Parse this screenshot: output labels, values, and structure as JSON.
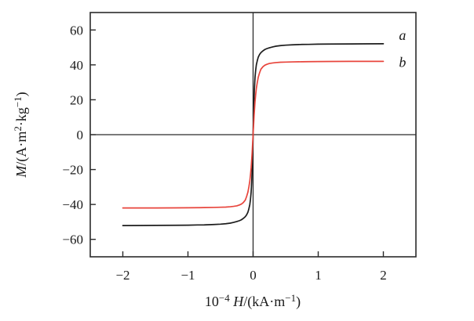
{
  "chart_data": {
    "type": "line",
    "title": "",
    "xlabel_plain": "10⁻⁴H/(kA·m⁻¹)",
    "ylabel_plain": "M/(A·m²·kg⁻¹)",
    "xlabel_parts": [
      {
        "t": "10"
      },
      {
        "t": "−4",
        "sup": true
      },
      {
        "t": " H",
        "i": true
      },
      {
        "t": "/(kA·m"
      },
      {
        "t": "−1",
        "sup": true
      },
      {
        "t": ")"
      }
    ],
    "ylabel_parts": [
      {
        "t": "M",
        "i": true
      },
      {
        "t": "/(A·m"
      },
      {
        "t": "2",
        "sup": true
      },
      {
        "t": "·kg"
      },
      {
        "t": "−1",
        "sup": true
      },
      {
        "t": ")"
      }
    ],
    "xlim": [
      -2.5,
      2.5
    ],
    "ylim": [
      -70,
      70
    ],
    "x_ticks": [
      {
        "value": -2,
        "label": "−2"
      },
      {
        "value": -1,
        "label": "−1"
      },
      {
        "value": 0,
        "label": "0"
      },
      {
        "value": 1,
        "label": "1"
      },
      {
        "value": 2,
        "label": "2"
      }
    ],
    "y_ticks": [
      {
        "value": -60,
        "label": "−60"
      },
      {
        "value": -40,
        "label": "−40"
      },
      {
        "value": -20,
        "label": "−20"
      },
      {
        "value": 0,
        "label": "0"
      },
      {
        "value": 20,
        "label": "20"
      },
      {
        "value": 40,
        "label": "40"
      },
      {
        "value": 60,
        "label": "60"
      }
    ],
    "grid": false,
    "zero_axes": true,
    "legend_position": "end-of-line-right",
    "colors": {
      "frame": "#2b2b2b",
      "axis": "#2b2b2b",
      "text": "#1a1a1a"
    },
    "series": [
      {
        "name": "a",
        "color": "#1c1c1c",
        "saturation_magnetization": 52,
        "label_pos": {
          "x": 2.24,
          "y": 57
        },
        "points": [
          [
            -2,
            -52.1
          ],
          [
            -1.7,
            -52.05
          ],
          [
            -1.5,
            -52
          ],
          [
            -1.2,
            -51.95
          ],
          [
            -1,
            -51.9
          ],
          [
            -0.85,
            -51.75
          ],
          [
            -0.75,
            -51.7
          ],
          [
            -0.6,
            -51.5
          ],
          [
            -0.5,
            -51.3
          ],
          [
            -0.42,
            -51.05
          ],
          [
            -0.35,
            -50.7
          ],
          [
            -0.3,
            -50.3
          ],
          [
            -0.25,
            -49.8
          ],
          [
            -0.21,
            -49.3
          ],
          [
            -0.18,
            -48.8
          ],
          [
            -0.15,
            -48
          ],
          [
            -0.12,
            -47
          ],
          [
            -0.1,
            -46
          ],
          [
            -0.08,
            -44.5
          ],
          [
            -0.065,
            -42.5
          ],
          [
            -0.05,
            -40
          ],
          [
            -0.04,
            -37
          ],
          [
            -0.03,
            -33
          ],
          [
            -0.02,
            -26
          ],
          [
            -0.015,
            -21
          ],
          [
            -0.01,
            -15
          ],
          [
            -0.005,
            -8
          ],
          [
            0,
            0
          ],
          [
            0.005,
            8
          ],
          [
            0.01,
            15
          ],
          [
            0.015,
            21
          ],
          [
            0.02,
            26
          ],
          [
            0.03,
            33
          ],
          [
            0.04,
            37
          ],
          [
            0.05,
            40
          ],
          [
            0.065,
            42.5
          ],
          [
            0.08,
            44.5
          ],
          [
            0.1,
            46
          ],
          [
            0.12,
            47
          ],
          [
            0.15,
            48
          ],
          [
            0.18,
            48.8
          ],
          [
            0.21,
            49.3
          ],
          [
            0.25,
            49.8
          ],
          [
            0.3,
            50.3
          ],
          [
            0.35,
            50.7
          ],
          [
            0.42,
            51.05
          ],
          [
            0.5,
            51.3
          ],
          [
            0.6,
            51.5
          ],
          [
            0.75,
            51.7
          ],
          [
            0.85,
            51.75
          ],
          [
            1,
            51.9
          ],
          [
            1.2,
            51.95
          ],
          [
            1.5,
            52
          ],
          [
            1.7,
            52.05
          ],
          [
            2,
            52.1
          ]
        ]
      },
      {
        "name": "b",
        "color": "#e8453c",
        "saturation_magnetization": 42,
        "label_pos": {
          "x": 2.24,
          "y": 41.5
        },
        "points": [
          [
            -2,
            -42
          ],
          [
            -1.7,
            -42
          ],
          [
            -1.5,
            -42
          ],
          [
            -1.2,
            -41.95
          ],
          [
            -1,
            -41.9
          ],
          [
            -0.85,
            -41.85
          ],
          [
            -0.75,
            -41.8
          ],
          [
            -0.6,
            -41.7
          ],
          [
            -0.5,
            -41.6
          ],
          [
            -0.42,
            -41.5
          ],
          [
            -0.35,
            -41.3
          ],
          [
            -0.3,
            -41.1
          ],
          [
            -0.25,
            -40.8
          ],
          [
            -0.21,
            -40.3
          ],
          [
            -0.18,
            -39.8
          ],
          [
            -0.15,
            -38.9
          ],
          [
            -0.12,
            -37.5
          ],
          [
            -0.1,
            -35.5
          ],
          [
            -0.08,
            -33
          ],
          [
            -0.065,
            -30
          ],
          [
            -0.05,
            -26.5
          ],
          [
            -0.04,
            -23
          ],
          [
            -0.03,
            -19
          ],
          [
            -0.02,
            -13.5
          ],
          [
            -0.015,
            -10.5
          ],
          [
            -0.01,
            -7
          ],
          [
            -0.005,
            -3.5
          ],
          [
            0,
            0
          ],
          [
            0.005,
            3.5
          ],
          [
            0.01,
            7
          ],
          [
            0.015,
            10.5
          ],
          [
            0.02,
            13.5
          ],
          [
            0.03,
            19
          ],
          [
            0.04,
            23
          ],
          [
            0.05,
            26.5
          ],
          [
            0.065,
            30
          ],
          [
            0.08,
            33
          ],
          [
            0.1,
            35.5
          ],
          [
            0.12,
            37.5
          ],
          [
            0.15,
            38.9
          ],
          [
            0.18,
            39.8
          ],
          [
            0.21,
            40.3
          ],
          [
            0.25,
            40.8
          ],
          [
            0.3,
            41.1
          ],
          [
            0.35,
            41.3
          ],
          [
            0.42,
            41.5
          ],
          [
            0.5,
            41.6
          ],
          [
            0.6,
            41.7
          ],
          [
            0.75,
            41.8
          ],
          [
            0.85,
            41.85
          ],
          [
            1,
            41.9
          ],
          [
            1.2,
            41.95
          ],
          [
            1.5,
            42
          ],
          [
            1.7,
            42
          ],
          [
            2,
            42
          ]
        ]
      }
    ]
  }
}
